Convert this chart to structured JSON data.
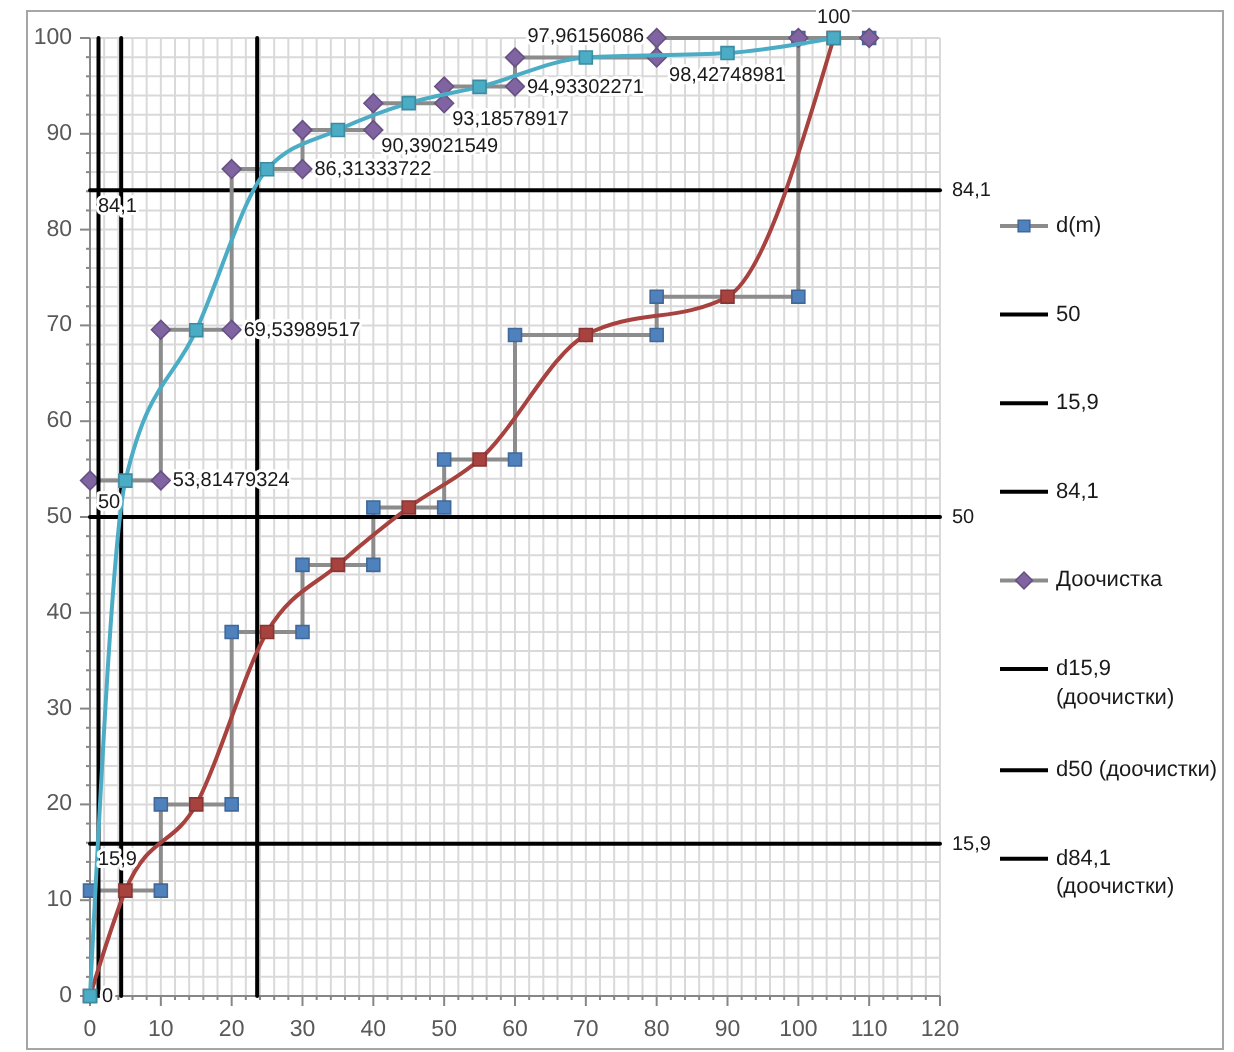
{
  "chart_data": {
    "type": "line",
    "xlim": [
      0,
      120
    ],
    "ylim": [
      0,
      100
    ],
    "xticks": [
      0,
      {
        "value": 2,
        "label": null
      },
      {
        "value": 4,
        "label": null
      },
      {
        "value": 6,
        "label": null
      },
      {
        "value": 8,
        "label": null
      },
      10,
      {
        "value": 12,
        "label": null
      },
      {
        "value": 14,
        "label": null
      },
      {
        "value": 16,
        "label": null
      },
      {
        "value": 18,
        "label": null
      },
      20,
      {
        "value": 22,
        "label": null
      },
      {
        "value": 24,
        "label": null
      },
      {
        "value": 26,
        "label": null
      },
      {
        "value": 28,
        "label": null
      },
      30,
      {
        "value": 32,
        "label": null
      },
      {
        "value": 34,
        "label": null
      },
      {
        "value": 36,
        "label": null
      },
      {
        "value": 38,
        "label": null
      },
      40,
      {
        "value": 42,
        "label": null
      },
      {
        "value": 44,
        "label": null
      },
      {
        "value": 46,
        "label": null
      },
      {
        "value": 48,
        "label": null
      },
      50,
      {
        "value": 52,
        "label": null
      },
      {
        "value": 54,
        "label": null
      },
      {
        "value": 56,
        "label": null
      },
      {
        "value": 58,
        "label": null
      },
      60,
      {
        "value": 62,
        "label": null
      },
      {
        "value": 64,
        "label": null
      },
      {
        "value": 66,
        "label": null
      },
      {
        "value": 68,
        "label": null
      },
      70,
      {
        "value": 72,
        "label": null
      },
      {
        "value": 74,
        "label": null
      },
      {
        "value": 76,
        "label": null
      },
      {
        "value": 78,
        "label": null
      },
      80,
      {
        "value": 82,
        "label": null
      },
      {
        "value": 84,
        "label": null
      },
      {
        "value": 86,
        "label": null
      },
      {
        "value": 88,
        "label": null
      },
      90,
      {
        "value": 92,
        "label": null
      },
      {
        "value": 94,
        "label": null
      },
      {
        "value": 96,
        "label": null
      },
      {
        "value": 98,
        "label": null
      },
      100,
      {
        "value": 102,
        "label": null
      },
      {
        "value": 104,
        "label": null
      },
      {
        "value": 106,
        "label": null
      },
      {
        "value": 108,
        "label": null
      },
      110,
      {
        "value": 112,
        "label": null
      },
      {
        "value": 114,
        "label": null
      },
      {
        "value": 116,
        "label": null
      },
      {
        "value": 118,
        "label": null
      },
      120
    ],
    "yticks": [
      0,
      {
        "value": 2,
        "label": null
      },
      {
        "value": 4,
        "label": null
      },
      {
        "value": 6,
        "label": null
      },
      {
        "value": 8,
        "label": null
      },
      10,
      {
        "value": 12,
        "label": null
      },
      {
        "value": 14,
        "label": null
      },
      {
        "value": 16,
        "label": null
      },
      {
        "value": 18,
        "label": null
      },
      20,
      {
        "value": 22,
        "label": null
      },
      {
        "value": 24,
        "label": null
      },
      {
        "value": 26,
        "label": null
      },
      {
        "value": 28,
        "label": null
      },
      30,
      {
        "value": 32,
        "label": null
      },
      {
        "value": 34,
        "label": null
      },
      {
        "value": 36,
        "label": null
      },
      {
        "value": 38,
        "label": null
      },
      40,
      {
        "value": 42,
        "label": null
      },
      {
        "value": 44,
        "label": null
      },
      {
        "value": 46,
        "label": null
      },
      {
        "value": 48,
        "label": null
      },
      50,
      {
        "value": 52,
        "label": null
      },
      {
        "value": 54,
        "label": null
      },
      {
        "value": 56,
        "label": null
      },
      {
        "value": 58,
        "label": null
      },
      60,
      {
        "value": 62,
        "label": null
      },
      {
        "value": 64,
        "label": null
      },
      {
        "value": 66,
        "label": null
      },
      {
        "value": 68,
        "label": null
      },
      70,
      {
        "value": 72,
        "label": null
      },
      {
        "value": 74,
        "label": null
      },
      {
        "value": 76,
        "label": null
      },
      {
        "value": 78,
        "label": null
      },
      80,
      {
        "value": 82,
        "label": null
      },
      {
        "value": 84,
        "label": null
      },
      {
        "value": 86,
        "label": null
      },
      {
        "value": 88,
        "label": null
      },
      90,
      {
        "value": 92,
        "label": null
      },
      {
        "value": 94,
        "label": null
      },
      {
        "value": 96,
        "label": null
      },
      {
        "value": 98,
        "label": null
      },
      100
    ],
    "grid": true,
    "legend": "right",
    "series": [
      {
        "name": "d(m)",
        "color": "#8c8c8c",
        "colors": [
          "#4f81bd",
          "#4f81bd",
          "#4f81bd",
          "#4f81bd",
          "#4f81bd",
          "#4f81bd",
          "#4f81bd",
          "#4f81bd",
          "#4f81bd",
          "#4f81bd",
          "#4f81bd",
          "#4f81bd",
          "#4f81bd",
          "#4f81bd",
          "#4f81bd",
          "#4f81bd",
          "#4f81bd",
          "#4f81bd"
        ],
        "marker": "square",
        "x": [
          0,
          10,
          10,
          20,
          20,
          30,
          30,
          40,
          40,
          50,
          50,
          60,
          60,
          80,
          80,
          100,
          100,
          110
        ],
        "values": [
          11,
          11,
          20,
          20,
          38,
          38,
          45,
          45,
          51,
          51,
          56,
          56,
          69,
          69,
          73,
          73,
          100,
          100
        ]
      },
      {
        "name": "50",
        "color": "#000000",
        "marker": "none",
        "x": [
          0,
          120
        ],
        "values": [
          50,
          50
        ],
        "value_labels": [
          "50",
          "50"
        ]
      },
      {
        "name": "15,9",
        "color": "#000000",
        "marker": "none",
        "x": [
          0,
          120
        ],
        "values": [
          15.9,
          15.9
        ],
        "value_labels": [
          "15,9",
          "15,9"
        ]
      },
      {
        "name": "84,1",
        "color": "#000000",
        "marker": "none",
        "x": [
          0,
          120
        ],
        "values": [
          84.1,
          84.1
        ],
        "value_labels": [
          "84,1",
          "84,1"
        ]
      },
      {
        "name": "Доочистка",
        "color": "#8c8c8c",
        "colors": [
          "#8064a2",
          "#8064a2",
          "#8064a2",
          "#8064a2",
          "#8064a2",
          "#8064a2",
          "#8064a2",
          "#8064a2",
          "#8064a2",
          "#8064a2",
          "#8064a2",
          "#8064a2",
          "#8064a2",
          "#8064a2",
          "#8064a2",
          "#8064a2",
          "#8064a2"
        ],
        "marker": "diamond",
        "x": [
          0,
          10,
          10,
          20,
          20,
          30,
          30,
          40,
          40,
          50,
          50,
          60,
          60,
          80,
          80,
          100,
          110
        ],
        "values": [
          53.81479324,
          53.81479324,
          69.53989517,
          69.53989517,
          86.31333722,
          86.31333722,
          90.39021549,
          90.39021549,
          93.18578917,
          93.18578917,
          94.93302271,
          94.93302271,
          97.96156086,
          97.96156086,
          100,
          100,
          100
        ],
        "value_labels": [
          null,
          "53,81479324",
          null,
          "69,53989517",
          null,
          "86,31333722",
          null,
          "90,39021549",
          null,
          "93,18578917",
          null,
          "94,93302271",
          null,
          null,
          null,
          null,
          null
        ]
      },
      {
        "name": "d15,9 (доочистки)",
        "color": "#000000",
        "marker": "none",
        "x": [
          1.2,
          1.2
        ],
        "values": [
          0,
          100
        ]
      },
      {
        "name": "d50 (доочистки)",
        "color": "#000000",
        "marker": "none",
        "x": [
          4.4,
          4.4
        ],
        "values": [
          0,
          100
        ]
      },
      {
        "name": "d84,1 (доочистки)",
        "color": "#000000",
        "marker": "none",
        "x": [
          23.6,
          23.6
        ],
        "values": [
          0,
          100
        ]
      },
      {
        "color": "#a8423f",
        "marker": "square",
        "x": [
          0,
          5,
          15,
          25,
          35,
          45,
          55,
          70,
          90,
          105
        ],
        "values": [
          0,
          11,
          20,
          38,
          45,
          51,
          56,
          69,
          73,
          100
        ]
      },
      {
        "color": "#4bacc6",
        "marker": "square",
        "x": [
          0,
          5,
          15,
          25,
          35,
          45,
          55,
          70,
          90,
          105
        ],
        "values": [
          0,
          53.8,
          69.5,
          86.3,
          90.4,
          93.2,
          94.9,
          97.96156086,
          98.42748981,
          100
        ],
        "value_labels": [
          "0",
          null,
          null,
          null,
          null,
          null,
          null,
          "97,96156086",
          "98,42748981",
          "100"
        ]
      }
    ]
  }
}
